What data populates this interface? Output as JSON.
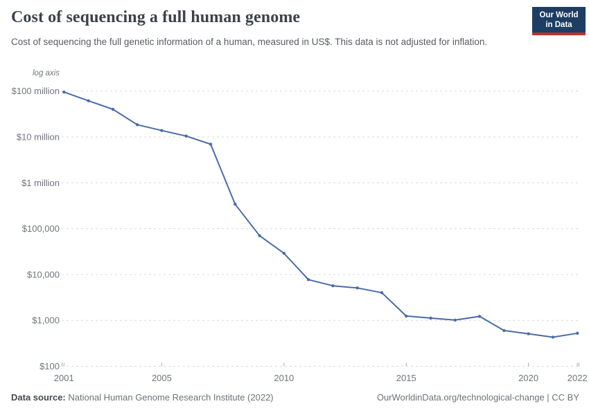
{
  "header": {
    "title": "Cost of sequencing a full human genome",
    "subtitle": "Cost of sequencing the full genetic information of a human, measured in US$. This data is not adjusted for inflation.",
    "logo": {
      "line1": "Our World",
      "line2": "in Data",
      "bg_color": "#1d3d63",
      "accent_color": "#bc322b"
    }
  },
  "chart_data": {
    "type": "line",
    "title": "Cost of sequencing a full human genome",
    "xlabel": "",
    "ylabel": "",
    "y_scale": "log",
    "y_axis_note": "log axis",
    "grid": "horizontal-dashed",
    "legend_position": "none",
    "xlim": [
      2001,
      2022
    ],
    "ylim": [
      100,
      100000000
    ],
    "x": [
      2001,
      2002,
      2003,
      2004,
      2005,
      2006,
      2007,
      2008,
      2009,
      2010,
      2011,
      2012,
      2013,
      2014,
      2015,
      2016,
      2017,
      2018,
      2019,
      2020,
      2021,
      2022
    ],
    "series": [
      {
        "name": "Cost of sequencing a full human genome (US$)",
        "values": [
          95263072,
          61448422,
          40157554,
          18519312,
          13801124,
          10474556,
          6952122,
          342502,
          70333,
          29092,
          7743,
          5671,
          5096,
          4008,
          1245,
          1121,
          1015,
          1222,
          600,
          510,
          430,
          525
        ]
      }
    ],
    "x_ticks": [
      {
        "value": 2001,
        "label": "2001"
      },
      {
        "value": 2005,
        "label": "2005"
      },
      {
        "value": 2010,
        "label": "2010"
      },
      {
        "value": 2015,
        "label": "2015"
      },
      {
        "value": 2020,
        "label": "2020"
      },
      {
        "value": 2022,
        "label": "2022"
      }
    ],
    "y_ticks": [
      {
        "value": 100000000,
        "label": "$100 million"
      },
      {
        "value": 10000000,
        "label": "$10 million"
      },
      {
        "value": 1000000,
        "label": "$1 million"
      },
      {
        "value": 100000,
        "label": "$100,000"
      },
      {
        "value": 10000,
        "label": "$10,000"
      },
      {
        "value": 1000,
        "label": "$1,000"
      },
      {
        "value": 100,
        "label": "$100"
      }
    ],
    "colors": {
      "line": "#4a6ba8",
      "marker": "#4a6ba8",
      "grid": "#dadada",
      "tick": "#a9a9a9",
      "axis_text": "#6f747b"
    }
  },
  "footer": {
    "source_label": "Data source:",
    "source_text": " National Human Genome Research Institute (2022)",
    "right_text": "OurWorldinData.org/technological-change | CC BY"
  }
}
